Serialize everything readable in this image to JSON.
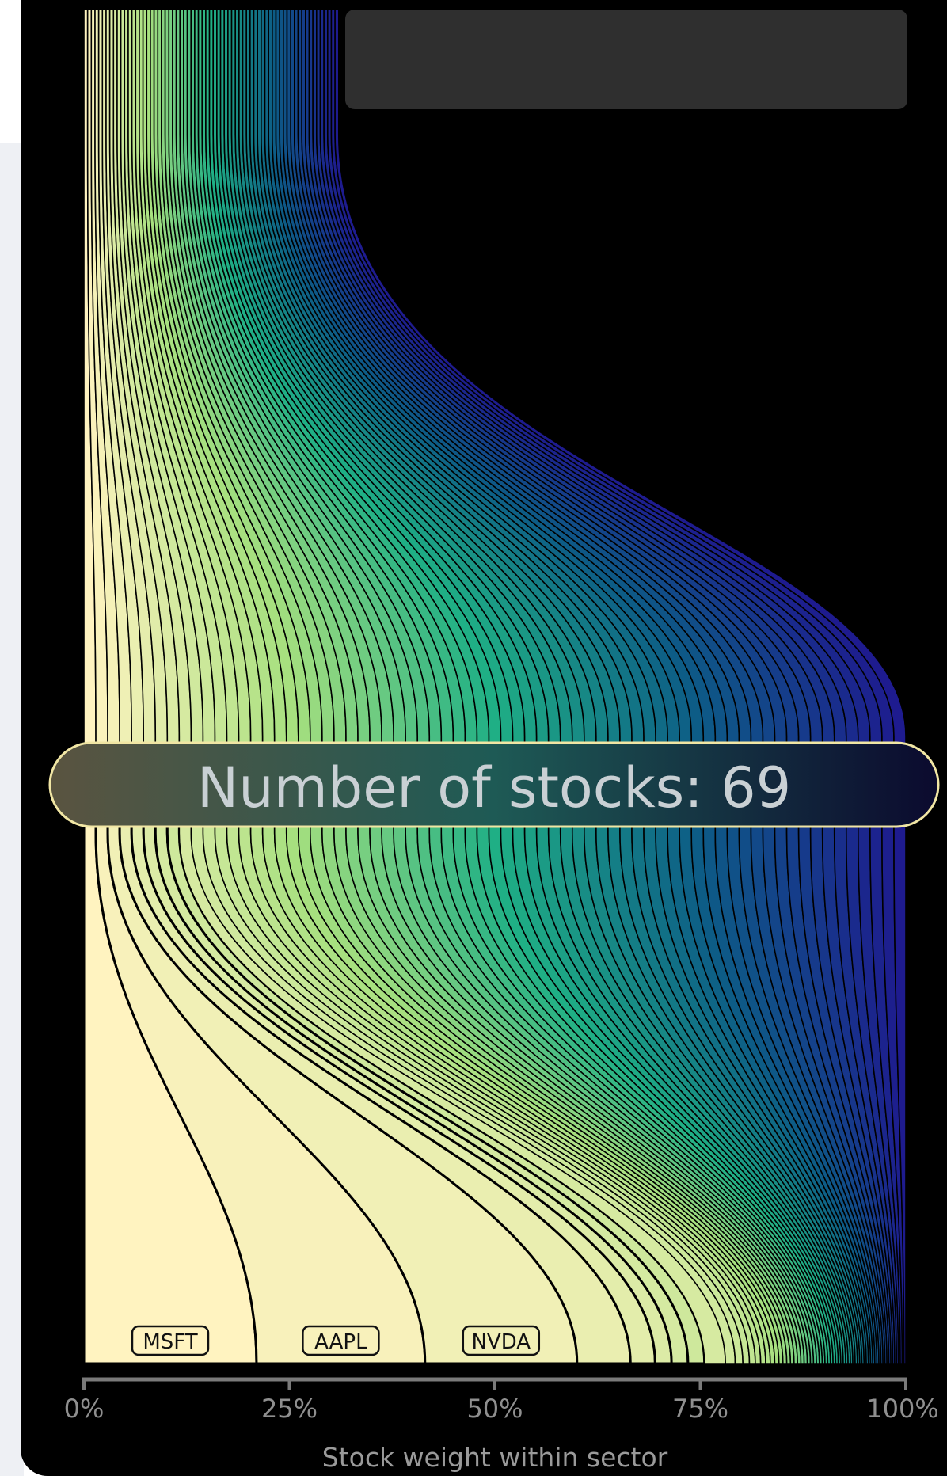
{
  "page": {
    "top_box_text": ""
  },
  "chart_data": {
    "type": "area",
    "title": "",
    "xlabel": "Stock weight within sector",
    "ylabel": "",
    "xlim": [
      0,
      100
    ],
    "x_ticks": [
      "0%",
      "25%",
      "50%",
      "75%",
      "100%"
    ],
    "stock_count": 69,
    "badge_label": "Number of stocks: 69",
    "annotated_stocks": [
      {
        "ticker": "MSFT",
        "cumulative_end_percent": 21
      },
      {
        "ticker": "AAPL",
        "cumulative_end_percent": 41.5
      },
      {
        "ticker": "NVDA",
        "cumulative_end_percent": 60
      }
    ],
    "bottom_boundaries_percent_approx": [
      21,
      41.5,
      60,
      66.5,
      69.5,
      71.5,
      73.5,
      75.5
    ],
    "colorscale": [
      "#fff3c0",
      "#a7e07f",
      "#1faf85",
      "#0d5c86",
      "#1e1b8f"
    ],
    "grid": false,
    "legend": "none"
  }
}
